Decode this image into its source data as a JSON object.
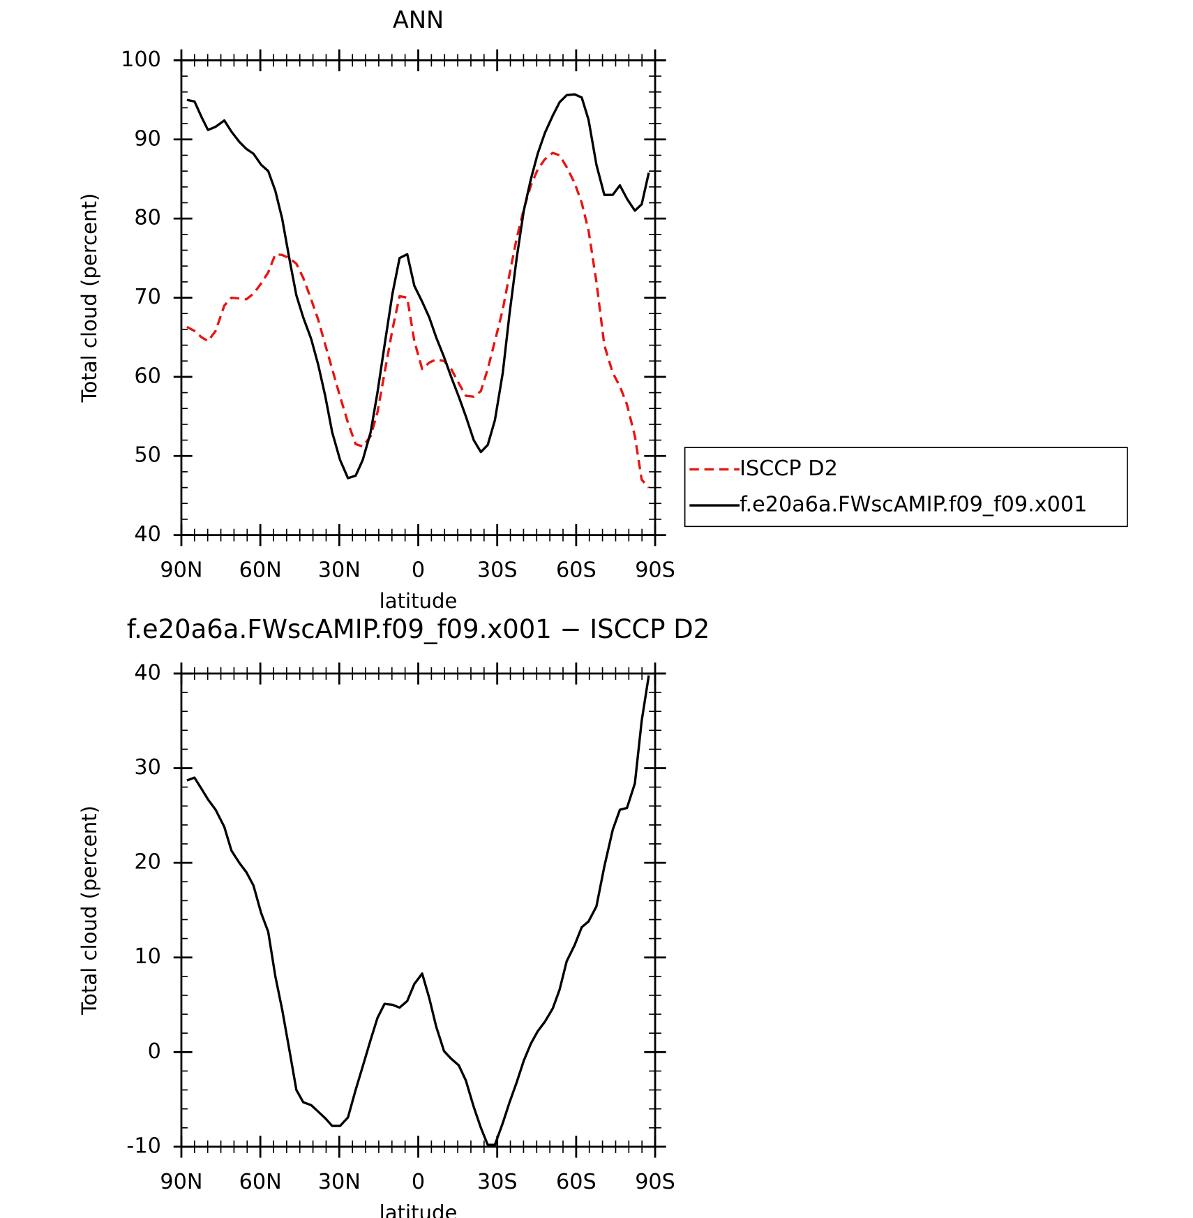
{
  "chart_data": [
    {
      "type": "line",
      "title": "ANN",
      "xlabel": "latitude",
      "ylabel": "Total cloud (percent)",
      "x": [
        87.9,
        85.0,
        82.3,
        79.9,
        77.0,
        73.7,
        71.0,
        68.0,
        65.3,
        62.6,
        59.7,
        57.0,
        54.3,
        51.7,
        49.0,
        46.3,
        43.7,
        40.7,
        38.0,
        35.3,
        32.7,
        29.7,
        26.7,
        23.8,
        21.1,
        18.1,
        15.5,
        12.8,
        9.8,
        7.1,
        4.2,
        1.5,
        -1.5,
        -4.2,
        -6.8,
        -9.8,
        -12.5,
        -15.4,
        -18.1,
        -21.1,
        -23.8,
        -26.4,
        -29.1,
        -32.1,
        -34.7,
        -37.4,
        -40.1,
        -42.8,
        -45.4,
        -48.1,
        -51.1,
        -53.7,
        -56.4,
        -59.4,
        -62.1,
        -64.7,
        -67.7,
        -70.7,
        -73.9,
        -76.6,
        -79.3,
        -82.3,
        -84.9,
        -87.6
      ],
      "xlim": [
        90,
        -90
      ],
      "xticks": [
        {
          "value": 90,
          "label": "90N"
        },
        {
          "value": 60,
          "label": "60N"
        },
        {
          "value": 30,
          "label": "30N"
        },
        0,
        {
          "value": -30,
          "label": "30S"
        },
        {
          "value": -60,
          "label": "60S"
        },
        {
          "value": -90,
          "label": "90S"
        }
      ],
      "ylim": [
        40,
        100
      ],
      "yticks": [
        40,
        50,
        60,
        70,
        80,
        90,
        100
      ],
      "legend": "right",
      "series": [
        {
          "name": "ISCCP D2",
          "color": "#e8140f",
          "dashed": true,
          "values": [
            66.3,
            65.8,
            65,
            64.5,
            65.8,
            69,
            70,
            69.9,
            69.8,
            70.5,
            71.8,
            73.2,
            75.5,
            75.4,
            75,
            74.3,
            72.5,
            69.8,
            67.2,
            64,
            61,
            57.5,
            54.2,
            51.5,
            51.2,
            52.5,
            55.5,
            60.5,
            66,
            70.2,
            70,
            64.5,
            61,
            61.8,
            62.2,
            62,
            61,
            59.2,
            57.6,
            57.5,
            58.2,
            61,
            64.5,
            68.5,
            73,
            77.5,
            81.2,
            84.2,
            86.2,
            87.5,
            88.3,
            88,
            86.5,
            84.5,
            82,
            78.5,
            72,
            64,
            60.5,
            58.8,
            56.5,
            52.5,
            47,
            46
          ]
        },
        {
          "name": "f.e20a6a.FWscAMIP.f09_f09.x001",
          "color": "#000000",
          "dashed": false,
          "values": [
            95,
            94.8,
            92.8,
            91.2,
            91.6,
            92.4,
            91,
            89.7,
            88.8,
            88.2,
            86.8,
            86,
            83.5,
            80,
            75,
            70.3,
            67.5,
            64.8,
            61.5,
            57.5,
            53,
            49.5,
            47.2,
            47.5,
            49.5,
            53,
            58,
            64,
            70.5,
            75,
            75.5,
            71.5,
            69.5,
            67.5,
            65,
            62.5,
            60,
            57.5,
            55,
            52,
            50.5,
            51.4,
            54.5,
            60.5,
            68,
            75,
            81,
            85,
            88.2,
            90.8,
            93,
            94.7,
            95.6,
            95.7,
            95.3,
            92.5,
            86.8,
            83,
            83,
            84.2,
            82.5,
            81,
            81.8,
            85.8
          ]
        }
      ]
    },
    {
      "type": "line",
      "title": "f.e20a6a.FWscAMIP.f09_f09.x001 − ISCCP D2",
      "xlabel": "latitude",
      "ylabel": "Total cloud (percent)",
      "x": [
        87.9,
        85.0,
        82.3,
        79.9,
        77.0,
        73.7,
        71.0,
        68.0,
        65.3,
        62.6,
        59.7,
        57.0,
        54.3,
        51.7,
        49.0,
        46.3,
        43.7,
        40.7,
        38.0,
        35.3,
        32.7,
        29.7,
        26.7,
        23.8,
        21.1,
        18.1,
        15.5,
        12.8,
        9.8,
        7.1,
        4.2,
        1.5,
        -1.5,
        -4.2,
        -6.8,
        -9.8,
        -12.5,
        -15.4,
        -18.1,
        -21.1,
        -23.8,
        -26.4,
        -29.1,
        -32.1,
        -34.7,
        -37.4,
        -40.1,
        -42.8,
        -45.4,
        -48.1,
        -51.1,
        -53.7,
        -56.4,
        -59.4,
        -62.1,
        -64.7,
        -67.7,
        -70.7,
        -73.9,
        -76.6,
        -79.3,
        -82.3,
        -84.9,
        -87.6
      ],
      "xlim": [
        90,
        -90
      ],
      "xticks": [
        {
          "value": 90,
          "label": "90N"
        },
        {
          "value": 60,
          "label": "60N"
        },
        {
          "value": 30,
          "label": "30N"
        },
        0,
        {
          "value": -30,
          "label": "30S"
        },
        {
          "value": -60,
          "label": "60S"
        },
        {
          "value": -90,
          "label": "90S"
        }
      ],
      "ylim": [
        -10,
        40
      ],
      "yticks": [
        -10,
        0,
        10,
        20,
        30,
        40
      ],
      "series": [
        {
          "color": "#000000",
          "dashed": false,
          "values": [
            28.7,
            29,
            27.8,
            26.7,
            25.6,
            23.8,
            21.3,
            20,
            19,
            17.6,
            14.7,
            12.7,
            8,
            4.5,
            0.3,
            -4,
            -5.3,
            -5.6,
            -6.3,
            -7,
            -7.8,
            -7.8,
            -6.9,
            -4,
            -1.5,
            1.3,
            3.6,
            5.1,
            5,
            4.7,
            5.4,
            7.2,
            8.3,
            5.7,
            2.7,
            0.1,
            -0.7,
            -1.4,
            -3,
            -5.8,
            -8,
            -9.8,
            -9.8,
            -7.5,
            -5.3,
            -3.2,
            -0.9,
            0.9,
            2.2,
            3.2,
            4.6,
            6.6,
            9.6,
            11.3,
            13.2,
            13.8,
            15.4,
            19.6,
            23.5,
            25.6,
            25.8,
            28.4,
            35,
            39.8
          ]
        }
      ]
    }
  ]
}
